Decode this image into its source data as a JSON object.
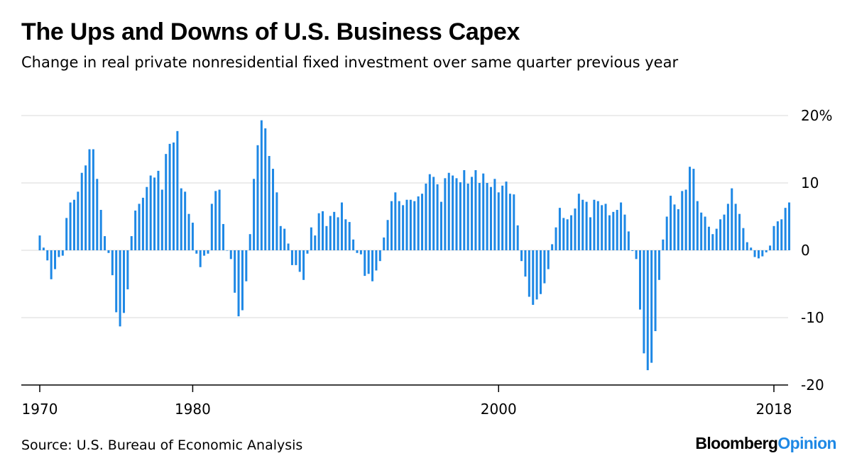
{
  "title": "The Ups and Downs of U.S. Business Capex",
  "subtitle": "Change in real private nonresidential fixed investment over same quarter previous year",
  "source": "Source: U.S. Bureau of Economic Analysis",
  "brand": {
    "main": "Bloomberg",
    "accent": "Opinion"
  },
  "colors": {
    "bar": "#1e88e5",
    "grid": "#e6e6e6",
    "axis": "#000000",
    "brand_accent": "#1e88e5"
  },
  "chart_data": {
    "type": "bar",
    "title": "The Ups and Downs of U.S. Business Capex",
    "subtitle": "Change in real private nonresidential fixed investment over same quarter previous year",
    "xlabel": "",
    "ylabel": "",
    "ylim": [
      -20,
      20
    ],
    "yticks": [
      20,
      10,
      0,
      -10,
      -20
    ],
    "ytick_labels": [
      "20%",
      "10",
      "0",
      "-10",
      "-20"
    ],
    "xlim": [
      1970,
      2018
    ],
    "xticks": [
      1970,
      1980,
      2000,
      2018
    ],
    "xtick_labels": [
      "1970",
      "1980",
      "2000",
      "2018"
    ],
    "grid": true,
    "y_axis_side": "right",
    "start_year": 1970,
    "values_per_year": 4,
    "series": [
      {
        "name": "Change in real private nonresidential fixed investment (%)",
        "values": [
          2.2,
          0.4,
          -1.5,
          -4.3,
          -2.8,
          -1.0,
          -0.8,
          4.8,
          7.1,
          7.5,
          8.7,
          11.5,
          12.6,
          15.0,
          15.0,
          10.6,
          6.0,
          2.1,
          -0.4,
          -3.7,
          -9.2,
          -11.3,
          -9.3,
          -5.8,
          2.1,
          5.9,
          6.9,
          7.8,
          9.4,
          11.1,
          10.8,
          11.8,
          9.0,
          14.3,
          15.8,
          16.0,
          17.7,
          9.2,
          8.7,
          5.4,
          4.1,
          -0.5,
          -2.5,
          -0.8,
          -0.5,
          6.9,
          8.8,
          9.0,
          3.9,
          0.0,
          -1.3,
          -6.3,
          -9.8,
          -8.9,
          -4.6,
          2.4,
          10.6,
          15.6,
          19.3,
          18.1,
          14.0,
          12.1,
          8.6,
          3.6,
          3.2,
          1.0,
          -2.2,
          -2.2,
          -3.2,
          -4.4,
          -0.5,
          3.4,
          2.2,
          5.5,
          5.8,
          3.6,
          5.1,
          5.7,
          4.9,
          7.1,
          4.6,
          4.2,
          1.6,
          -0.4,
          -0.6,
          -3.8,
          -3.5,
          -4.6,
          -3.0,
          -1.6,
          1.9,
          4.5,
          7.3,
          8.6,
          7.3,
          6.7,
          7.5,
          7.5,
          7.3,
          8.0,
          8.4,
          9.9,
          11.3,
          10.9,
          9.8,
          7.2,
          10.7,
          11.5,
          11.1,
          10.7,
          10.1,
          11.9,
          9.9,
          10.9,
          11.9,
          10.0,
          11.4,
          10.0,
          9.4,
          10.6,
          8.6,
          9.6,
          10.2,
          8.4,
          8.3,
          3.7,
          -1.6,
          -3.9,
          -6.9,
          -8.1,
          -7.3,
          -6.5,
          -4.9,
          -2.8,
          0.9,
          3.4,
          6.3,
          4.8,
          4.6,
          5.2,
          6.2,
          8.4,
          7.5,
          7.2,
          4.9,
          7.5,
          7.3,
          6.7,
          6.9,
          5.2,
          5.7,
          6.0,
          7.1,
          5.3,
          2.8,
          -0.1,
          -1.3,
          -8.8,
          -15.3,
          -17.8,
          -16.7,
          -12.0,
          -4.4,
          1.6,
          5.0,
          8.1,
          6.8,
          6.1,
          8.8,
          9.0,
          12.4,
          12.1,
          7.3,
          5.6,
          5.0,
          3.5,
          2.4,
          3.2,
          4.6,
          5.3,
          6.9,
          9.2,
          6.9,
          5.4,
          3.3,
          1.2,
          0.4,
          -1.0,
          -1.2,
          -0.9,
          -0.3,
          0.7,
          3.6,
          4.3,
          4.6,
          6.3,
          7.1
        ]
      }
    ]
  }
}
